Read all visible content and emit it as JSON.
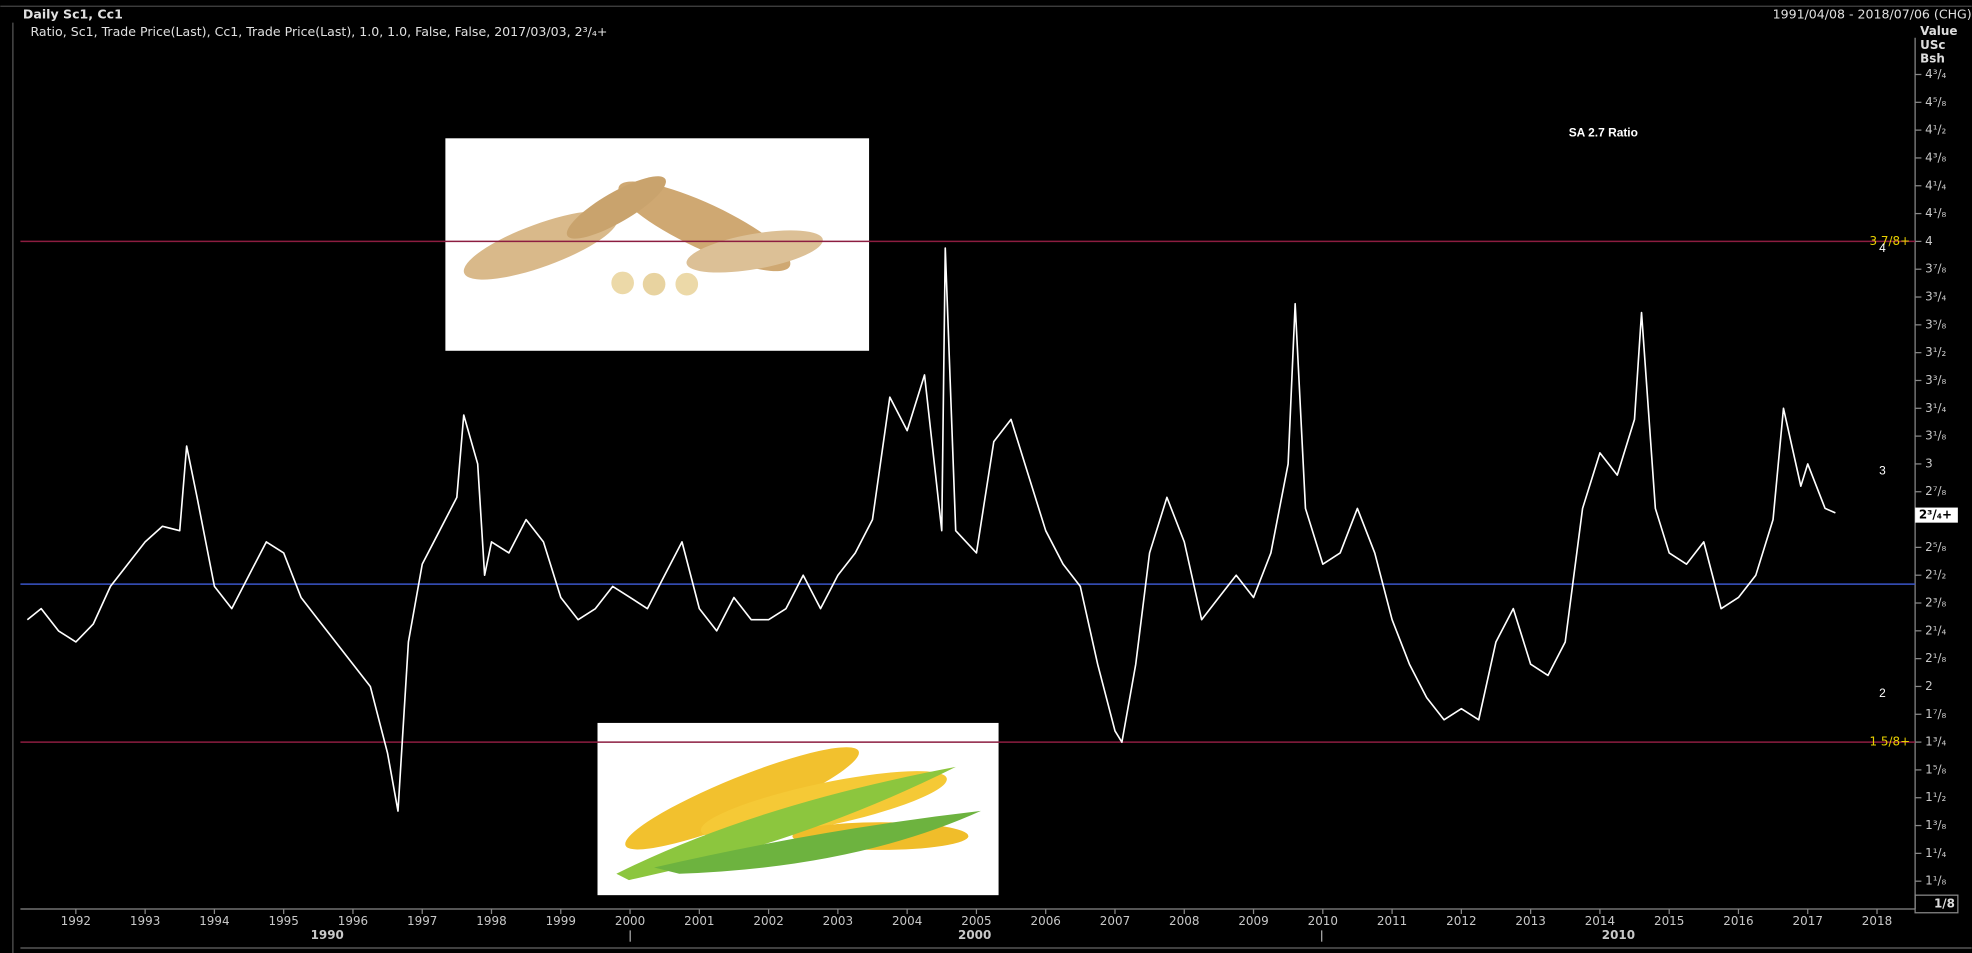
{
  "chart_data": {
    "type": "line",
    "title": "Daily Sc1, Cc1",
    "date_range": "1991/04/08 - 2018/07/06 (CHG)",
    "subtitle": "Ratio, Sc1, Trade Price(Last), Cc1, Trade Price(Last),  1.0, 1.0, False, False, 2017/03/03, 2³/₄+",
    "y_axis_title": [
      "Value",
      "USc",
      "Bsh"
    ],
    "y_increment": "1/8",
    "annotations": [
      {
        "text": "SA 2.7 Ratio",
        "value": null
      },
      {
        "text": "4",
        "value": 4
      },
      {
        "text": "3",
        "value": 3
      },
      {
        "text": "2",
        "value": 2
      }
    ],
    "x": [
      1991.3,
      1991.5,
      1991.75,
      1992,
      1992.25,
      1992.5,
      1992.75,
      1993,
      1993.25,
      1993.5,
      1993.6,
      1993.75,
      1994,
      1994.25,
      1994.5,
      1994.75,
      1995,
      1995.25,
      1995.5,
      1995.75,
      1996,
      1996.25,
      1996.5,
      1996.65,
      1996.8,
      1997,
      1997.25,
      1997.5,
      1997.6,
      1997.8,
      1997.9,
      1998,
      1998.25,
      1998.5,
      1998.75,
      1999,
      1999.25,
      1999.5,
      1999.75,
      2000,
      2000.25,
      2000.5,
      2000.75,
      2001,
      2001.25,
      2001.5,
      2001.75,
      2002,
      2002.25,
      2002.5,
      2002.75,
      2003,
      2003.25,
      2003.5,
      2003.75,
      2004,
      2004.25,
      2004.5,
      2004.55,
      2004.7,
      2005,
      2005.25,
      2005.5,
      2005.75,
      2006,
      2006.25,
      2006.5,
      2006.75,
      2007,
      2007.1,
      2007.3,
      2007.5,
      2007.75,
      2008,
      2008.25,
      2008.5,
      2008.75,
      2009,
      2009.25,
      2009.5,
      2009.6,
      2009.75,
      2010,
      2010.25,
      2010.5,
      2010.75,
      2011,
      2011.25,
      2011.5,
      2011.75,
      2012,
      2012.25,
      2012.5,
      2012.75,
      2013,
      2013.25,
      2013.5,
      2013.75,
      2014,
      2014.25,
      2014.5,
      2014.6,
      2014.8,
      2015,
      2015.25,
      2015.5,
      2015.75,
      2016,
      2016.25,
      2016.5,
      2016.65,
      2016.9,
      2017,
      2017.25,
      2017.4
    ],
    "values": [
      2.3,
      2.35,
      2.25,
      2.2,
      2.28,
      2.45,
      2.55,
      2.65,
      2.72,
      2.7,
      3.08,
      2.85,
      2.45,
      2.35,
      2.5,
      2.65,
      2.6,
      2.4,
      2.3,
      2.2,
      2.1,
      2.0,
      1.7,
      1.44,
      2.2,
      2.55,
      2.7,
      2.85,
      3.22,
      3.0,
      2.5,
      2.65,
      2.6,
      2.75,
      2.65,
      2.4,
      2.3,
      2.35,
      2.45,
      2.4,
      2.35,
      2.5,
      2.65,
      2.35,
      2.25,
      2.4,
      2.3,
      2.3,
      2.35,
      2.5,
      2.35,
      2.5,
      2.6,
      2.75,
      3.3,
      3.15,
      3.4,
      2.7,
      3.97,
      2.7,
      2.6,
      3.1,
      3.2,
      2.95,
      2.7,
      2.55,
      2.45,
      2.1,
      1.8,
      1.75,
      2.1,
      2.6,
      2.85,
      2.65,
      2.3,
      2.4,
      2.5,
      2.4,
      2.6,
      3.0,
      3.72,
      2.8,
      2.55,
      2.6,
      2.8,
      2.6,
      2.3,
      2.1,
      1.95,
      1.85,
      1.9,
      1.85,
      2.2,
      2.35,
      2.1,
      2.05,
      2.2,
      2.8,
      3.05,
      2.95,
      3.2,
      3.68,
      2.8,
      2.6,
      2.55,
      2.65,
      2.35,
      2.4,
      2.5,
      2.75,
      3.25,
      2.9,
      3.0,
      2.8,
      2.78
    ],
    "color": "#ffffff",
    "xlim": [
      1991.2,
      2018.55
    ],
    "ylim": [
      1,
      4.9
    ],
    "xticks": [
      1992,
      1993,
      1994,
      1995,
      1996,
      1997,
      1998,
      1999,
      2000,
      2001,
      2002,
      2003,
      2004,
      2005,
      2006,
      2007,
      2008,
      2009,
      2010,
      2011,
      2012,
      2013,
      2014,
      2015,
      2016,
      2017,
      2018
    ],
    "x_group_labels": [
      "1990",
      "2000",
      "2010"
    ],
    "yticks": [
      {
        "value": 1.125,
        "label": "1¹/₈"
      },
      {
        "value": 1.25,
        "label": "1¹/₄"
      },
      {
        "value": 1.375,
        "label": "1³/₈"
      },
      {
        "value": 1.5,
        "label": "1¹/₂"
      },
      {
        "value": 1.625,
        "label": "1⁵/₈"
      },
      {
        "value": 1.75,
        "label": "1³/₄"
      },
      {
        "value": 1.875,
        "label": "1⁷/₈"
      },
      2,
      {
        "value": 2.125,
        "label": "2¹/₈"
      },
      {
        "value": 2.25,
        "label": "2¹/₄"
      },
      {
        "value": 2.375,
        "label": "2³/₈"
      },
      {
        "value": 2.5,
        "label": "2¹/₂"
      },
      {
        "value": 2.625,
        "label": "2⁵/₈"
      },
      {
        "value": 2.875,
        "label": "2⁷/₈"
      },
      3,
      {
        "value": 3.125,
        "label": "3¹/₈"
      },
      {
        "value": 3.25,
        "label": "3¹/₄"
      },
      {
        "value": 3.375,
        "label": "3³/₈"
      },
      {
        "value": 3.5,
        "label": "3¹/₂"
      },
      {
        "value": 3.625,
        "label": "3⁵/₈"
      },
      {
        "value": 3.75,
        "label": "3³/₄"
      },
      {
        "value": 3.875,
        "label": "3⁷/₈"
      },
      4,
      {
        "value": 4.125,
        "label": "4¹/₈"
      },
      {
        "value": 4.25,
        "label": "4¹/₄"
      },
      {
        "value": 4.375,
        "label": "4³/₈"
      },
      {
        "value": 4.5,
        "label": "4¹/₂"
      },
      {
        "value": 4.625,
        "label": "4⁵/₈"
      },
      {
        "value": 4.75,
        "label": "4³/₄"
      }
    ],
    "last_value": {
      "value": 2.77,
      "label": "2³/₄+"
    },
    "reference_lines": [
      {
        "value": 4,
        "tag": "3 7/8+",
        "color": "#8c1d40"
      },
      {
        "value": 1.75,
        "tag": "1 5/8+",
        "color": "#8c1d40"
      },
      {
        "value": 2.46,
        "color": "#3a55c8"
      }
    ]
  }
}
